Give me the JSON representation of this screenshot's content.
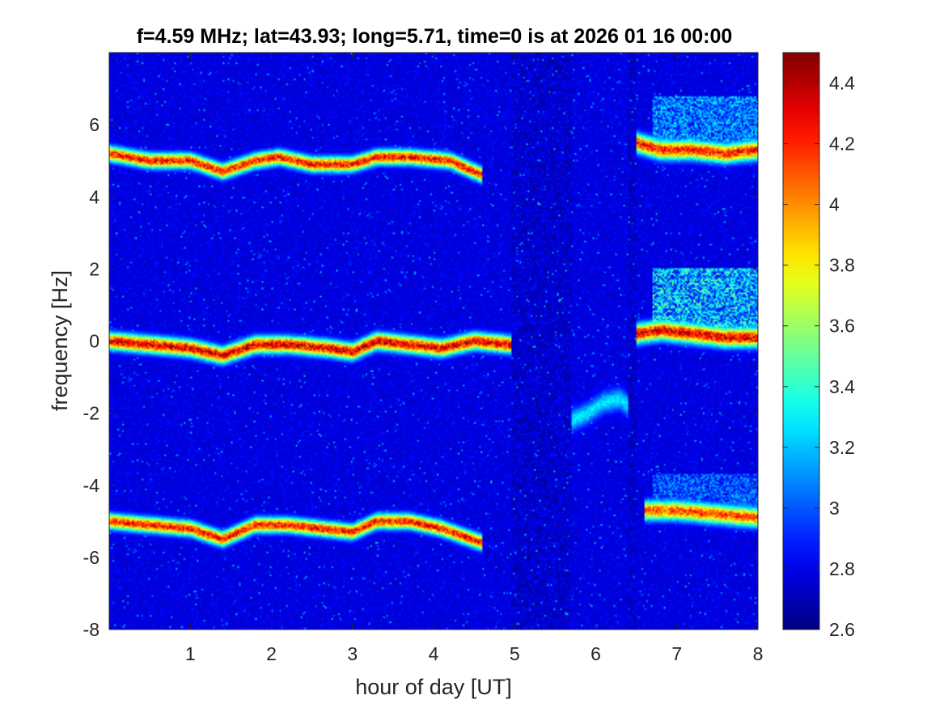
{
  "chart_data": {
    "type": "heatmap",
    "title": "f=4.59 MHz;  lat=43.93; long=5.71, time=0 is at 2026 01 16 00:00",
    "xlabel": "hour of day [UT]",
    "ylabel": "frequency [Hz]",
    "xlim": [
      0,
      8
    ],
    "ylim": [
      -8,
      8
    ],
    "x_ticks": [
      1,
      2,
      3,
      4,
      5,
      6,
      7,
      8
    ],
    "x_tick_labels": [
      "1",
      "2",
      "3",
      "4",
      "5",
      "6",
      "7",
      "8"
    ],
    "y_ticks": [
      -8,
      -6,
      -4,
      -2,
      0,
      2,
      4,
      6
    ],
    "y_tick_labels": [
      "-8",
      "-6",
      "-4",
      "-2",
      "0",
      "2",
      "4",
      "6"
    ],
    "colorbar": {
      "colormap": "jet",
      "clim": [
        2.6,
        4.5
      ],
      "ticks": [
        2.6,
        2.8,
        3,
        3.2,
        3.4,
        3.6,
        3.8,
        4,
        4.2,
        4.4
      ],
      "tick_labels": [
        "2.6",
        "2.8",
        "3",
        "3.2",
        "3.4",
        "3.6",
        "3.8",
        "4",
        "4.2",
        "4.4"
      ]
    },
    "background_level": 2.75,
    "traces": [
      {
        "intensity": 4.3,
        "width": 0.2,
        "points": [
          [
            0,
            5.2
          ],
          [
            0.5,
            5.0
          ],
          [
            1.0,
            5.0
          ],
          [
            1.4,
            4.7
          ],
          [
            1.8,
            5.0
          ],
          [
            2.1,
            5.1
          ],
          [
            2.5,
            4.9
          ],
          [
            3.0,
            4.9
          ],
          [
            3.3,
            5.1
          ],
          [
            3.7,
            5.1
          ],
          [
            4.2,
            5.0
          ],
          [
            4.6,
            4.6
          ]
        ]
      },
      {
        "intensity": 4.4,
        "width": 0.22,
        "points": [
          [
            0,
            0.0
          ],
          [
            0.5,
            -0.1
          ],
          [
            1.0,
            -0.2
          ],
          [
            1.4,
            -0.4
          ],
          [
            1.8,
            -0.1
          ],
          [
            2.2,
            -0.1
          ],
          [
            2.7,
            -0.2
          ],
          [
            3.0,
            -0.3
          ],
          [
            3.3,
            0.0
          ],
          [
            3.7,
            -0.1
          ],
          [
            4.1,
            -0.2
          ],
          [
            4.5,
            0.0
          ],
          [
            4.95,
            -0.1
          ]
        ]
      },
      {
        "intensity": 4.3,
        "width": 0.2,
        "points": [
          [
            0,
            -5.0
          ],
          [
            0.5,
            -5.1
          ],
          [
            1.0,
            -5.2
          ],
          [
            1.4,
            -5.5
          ],
          [
            1.8,
            -5.1
          ],
          [
            2.2,
            -5.1
          ],
          [
            2.6,
            -5.2
          ],
          [
            3.0,
            -5.3
          ],
          [
            3.3,
            -5.0
          ],
          [
            3.7,
            -5.0
          ],
          [
            4.1,
            -5.2
          ],
          [
            4.6,
            -5.6
          ]
        ]
      },
      {
        "intensity": 4.3,
        "width": 0.25,
        "points": [
          [
            6.5,
            5.5
          ],
          [
            6.8,
            5.3
          ],
          [
            7.2,
            5.3
          ],
          [
            7.6,
            5.2
          ],
          [
            8.0,
            5.3
          ]
        ]
      },
      {
        "intensity": 4.4,
        "width": 0.25,
        "points": [
          [
            6.5,
            0.2
          ],
          [
            6.8,
            0.3
          ],
          [
            7.2,
            0.2
          ],
          [
            7.6,
            0.1
          ],
          [
            8.0,
            0.1
          ]
        ]
      },
      {
        "intensity": 4.2,
        "width": 0.25,
        "points": [
          [
            6.6,
            -4.7
          ],
          [
            7.0,
            -4.7
          ],
          [
            7.5,
            -4.8
          ],
          [
            8.0,
            -4.9
          ]
        ]
      },
      {
        "intensity": 3.3,
        "width": 0.3,
        "points": [
          [
            5.7,
            -2.2
          ],
          [
            5.9,
            -2.0
          ],
          [
            6.1,
            -1.7
          ],
          [
            6.3,
            -1.6
          ],
          [
            6.4,
            -1.8
          ]
        ]
      }
    ],
    "diffuse_regions": [
      {
        "x": [
          6.7,
          8.0
        ],
        "y": [
          5.3,
          6.8
        ],
        "level": 3.2
      },
      {
        "x": [
          6.7,
          8.0
        ],
        "y": [
          0.3,
          2.0
        ],
        "level": 3.35
      },
      {
        "x": [
          6.7,
          8.0
        ],
        "y": [
          -4.7,
          -3.7
        ],
        "level": 3.1
      }
    ]
  }
}
